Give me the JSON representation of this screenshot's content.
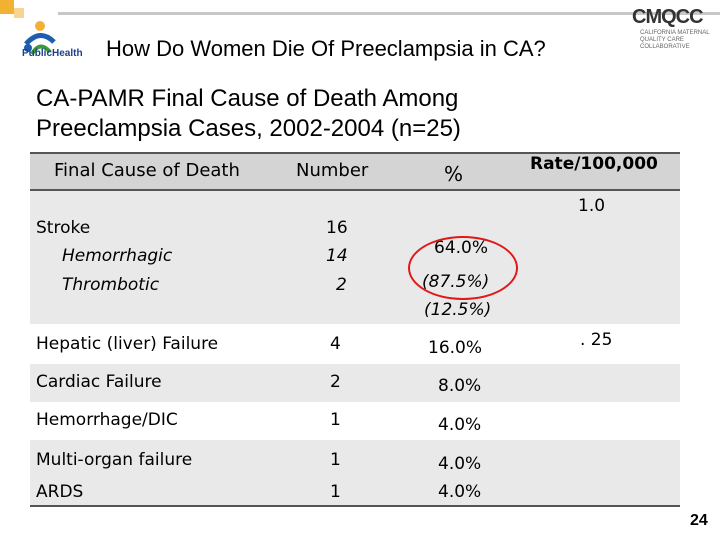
{
  "header": {
    "slide_title": "How Do Women Die Of Preeclampsia in CA?",
    "logo_left_text": "PublicHealth",
    "logo_right_name": "CMQCC",
    "logo_right_sub": "CALIFORNIA MATERNAL QUALITY CARE COLLABORATIVE"
  },
  "subtitle": "CA-PAMR Final Cause of Death Among Preeclampsia Cases, 2002-2004 (n=25)",
  "table": {
    "columns": [
      "Final Cause of Death",
      "Number",
      "%",
      "Rate/100,000"
    ],
    "rows": [
      {
        "cause": "Stroke",
        "number": "16",
        "pct": "64.0%",
        "rate": "1.0"
      },
      {
        "cause": "Hemorrhagic",
        "number": "14",
        "pct": "(87.5%)",
        "rate": ""
      },
      {
        "cause": "Thrombotic",
        "number": "2",
        "pct": "(12.5%)",
        "rate": ""
      },
      {
        "cause": "Hepatic (liver) Failure",
        "number": "4",
        "pct": "16.0%",
        "rate": ". 25"
      },
      {
        "cause": "Cardiac Failure",
        "number": "2",
        "pct": "8.0%",
        "rate": ""
      },
      {
        "cause": "Hemorrhage/DIC",
        "number": "1",
        "pct": "4.0%",
        "rate": ""
      },
      {
        "cause": "Multi-organ failure",
        "number": "1",
        "pct": "4.0%",
        "rate": ""
      },
      {
        "cause": "ARDS",
        "number": "1",
        "pct": "4.0%",
        "rate": ""
      }
    ]
  },
  "page_number": "24",
  "colors": {
    "header_band": "#d4d4d4",
    "row_band": "#e9e9e9",
    "highlight": "#e01818",
    "accent": "#f3b134"
  }
}
